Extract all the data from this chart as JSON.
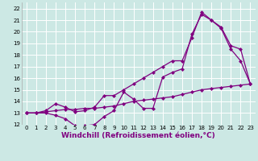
{
  "title": "",
  "xlabel": "Windchill (Refroidissement éolien,°C)",
  "ylabel": "",
  "bg_color": "#cce8e4",
  "line_color": "#800080",
  "grid_color": "#ffffff",
  "xlim": [
    -0.5,
    23.5
  ],
  "ylim": [
    12,
    22.5
  ],
  "xticks": [
    0,
    1,
    2,
    3,
    4,
    5,
    6,
    7,
    8,
    9,
    10,
    11,
    12,
    13,
    14,
    15,
    16,
    17,
    18,
    19,
    20,
    21,
    22,
    23
  ],
  "yticks": [
    12,
    13,
    14,
    15,
    16,
    17,
    18,
    19,
    20,
    21,
    22
  ],
  "line1_x": [
    0,
    1,
    2,
    3,
    4,
    5,
    6,
    7,
    8,
    9,
    10,
    11,
    12,
    13,
    14,
    15,
    16,
    17,
    18,
    19,
    20,
    21,
    22,
    23
  ],
  "line1_y": [
    13.0,
    13.0,
    13.1,
    13.2,
    13.3,
    13.3,
    13.4,
    13.4,
    13.5,
    13.6,
    13.8,
    14.0,
    14.1,
    14.2,
    14.3,
    14.4,
    14.6,
    14.8,
    15.0,
    15.1,
    15.2,
    15.3,
    15.4,
    15.5
  ],
  "line2_x": [
    0,
    1,
    2,
    3,
    4,
    5,
    6,
    7,
    8,
    9,
    10,
    11,
    12,
    13,
    14,
    15,
    16,
    17,
    18,
    19,
    20,
    21,
    22,
    23
  ],
  "line2_y": [
    13.0,
    13.0,
    13.0,
    12.8,
    12.5,
    11.9,
    11.9,
    12.0,
    12.7,
    13.2,
    14.8,
    14.2,
    13.4,
    13.4,
    16.1,
    16.5,
    16.8,
    19.8,
    21.5,
    21.0,
    20.4,
    18.8,
    18.5,
    15.5
  ],
  "line3_x": [
    0,
    1,
    2,
    3,
    4,
    5,
    6,
    7,
    8,
    9,
    10,
    11,
    12,
    13,
    14,
    15,
    16,
    17,
    18,
    19,
    20,
    21,
    22,
    23
  ],
  "line3_y": [
    13.0,
    13.0,
    13.2,
    13.8,
    13.5,
    13.1,
    13.2,
    13.5,
    14.5,
    14.5,
    15.0,
    15.5,
    16.0,
    16.5,
    17.0,
    17.5,
    17.5,
    19.5,
    21.7,
    21.0,
    20.3,
    18.5,
    17.5,
    15.5
  ],
  "marker": "D",
  "markersize": 2.0,
  "linewidth": 0.9,
  "tick_fontsize": 5.0,
  "xlabel_fontsize": 6.5,
  "xlabel_color": "#800080"
}
